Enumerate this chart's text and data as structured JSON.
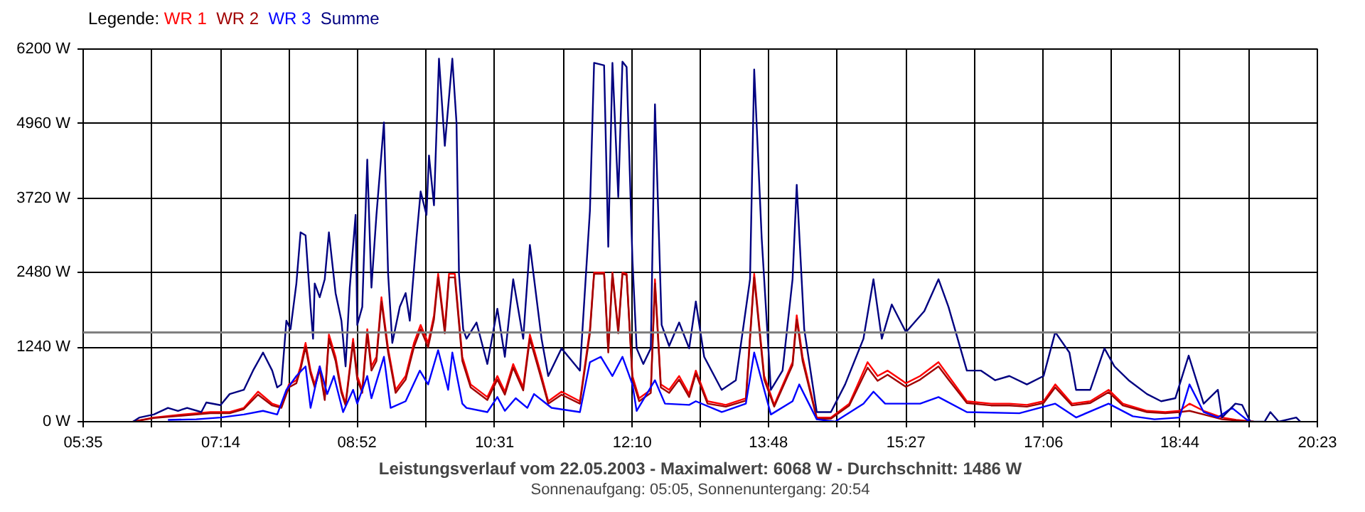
{
  "chart_data": {
    "type": "line",
    "title": "Leistungsverlauf vom 22.05.2003 - Maximalwert: 6068 W - Durchschnitt: 1486 W",
    "subtitle": "Sonnenaufgang: 05:05, Sonnenuntergang: 20:54",
    "legend_title": "Legende:",
    "legend": "top left",
    "grid": true,
    "line_style": "solid",
    "xlim": [
      5.5833,
      20.3833
    ],
    "xticks": [
      {
        "value": 5.5833,
        "label": "05:35"
      },
      {
        "value": 6.4083,
        "label": null
      },
      {
        "value": 7.2333,
        "label": "07:14"
      },
      {
        "value": 8.05,
        "label": null
      },
      {
        "value": 8.8667,
        "label": "08:52"
      },
      {
        "value": 9.6917,
        "label": null
      },
      {
        "value": 10.5167,
        "label": "10:31"
      },
      {
        "value": 11.3417,
        "label": null
      },
      {
        "value": 12.1667,
        "label": "12:10"
      },
      {
        "value": 12.9833,
        "label": null
      },
      {
        "value": 13.8,
        "label": "13:48"
      },
      {
        "value": 14.625,
        "label": null
      },
      {
        "value": 15.45,
        "label": "15:27"
      },
      {
        "value": 16.275,
        "label": null
      },
      {
        "value": 17.1,
        "label": "17:06"
      },
      {
        "value": 17.9167,
        "label": null
      },
      {
        "value": 18.7333,
        "label": "18:44"
      },
      {
        "value": 19.5583,
        "label": null
      },
      {
        "value": 20.3833,
        "label": "20:23"
      }
    ],
    "ylim": [
      0,
      6200
    ],
    "yticks": [
      {
        "value": 0,
        "label": "0 W"
      },
      {
        "value": 1240,
        "label": "1240 W"
      },
      {
        "value": 2480,
        "label": "2480 W"
      },
      {
        "value": 3720,
        "label": "3720 W"
      },
      {
        "value": 4960,
        "label": "4960 W"
      },
      {
        "value": 6200,
        "label": "6200 W"
      }
    ],
    "ref_lines": [
      {
        "axis": "y",
        "value": 1486,
        "color": "#808080"
      }
    ],
    "series": [
      {
        "name": "WR 1",
        "color": "#ff0000",
        "x": [
          6.18,
          6.43,
          6.77,
          7.11,
          7.34,
          7.51,
          7.68,
          7.85,
          7.96,
          8.05,
          8.14,
          8.19,
          8.25,
          8.31,
          8.36,
          8.42,
          8.48,
          8.53,
          8.61,
          8.68,
          8.73,
          8.82,
          8.87,
          8.93,
          8.99,
          9.04,
          9.1,
          9.16,
          9.24,
          9.33,
          9.45,
          9.55,
          9.63,
          9.72,
          9.79,
          9.84,
          9.92,
          9.97,
          10.04,
          10.13,
          10.23,
          10.43,
          10.55,
          10.64,
          10.74,
          10.86,
          10.94,
          11.08,
          11.16,
          11.32,
          11.54,
          11.66,
          11.71,
          11.83,
          11.88,
          11.93,
          12.0,
          12.05,
          12.1,
          12.17,
          12.25,
          12.39,
          12.44,
          12.51,
          12.61,
          12.73,
          12.85,
          12.93,
          13.07,
          13.29,
          13.53,
          13.63,
          13.75,
          13.87,
          14.09,
          14.14,
          14.21,
          14.38,
          14.55,
          14.77,
          14.99,
          15.11,
          15.23,
          15.45,
          15.62,
          15.84,
          15.96,
          16.18,
          16.47,
          16.69,
          16.9,
          17.1,
          17.24,
          17.44,
          17.66,
          17.88,
          18.05,
          18.34,
          18.56,
          18.73,
          18.85,
          19.02,
          19.24,
          19.41,
          19.62
        ],
        "values": [
          0,
          70,
          120,
          160,
          160,
          230,
          500,
          300,
          250,
          620,
          690,
          920,
          1310,
          850,
          620,
          920,
          390,
          1450,
          1080,
          530,
          300,
          1380,
          760,
          530,
          1540,
          920,
          1080,
          2070,
          1220,
          530,
          760,
          1310,
          1610,
          1310,
          1770,
          2460,
          1540,
          2460,
          2460,
          1080,
          620,
          410,
          760,
          500,
          960,
          570,
          1450,
          760,
          340,
          500,
          340,
          1540,
          2480,
          2480,
          1220,
          2480,
          1540,
          2480,
          2460,
          760,
          390,
          530,
          2370,
          620,
          530,
          760,
          460,
          850,
          340,
          280,
          390,
          2460,
          760,
          280,
          990,
          1770,
          1080,
          70,
          70,
          300,
          990,
          760,
          850,
          640,
          760,
          990,
          760,
          340,
          300,
          300,
          280,
          340,
          620,
          300,
          340,
          530,
          300,
          180,
          160,
          180,
          300,
          180,
          70,
          30,
          0
        ]
      },
      {
        "name": "WR 2",
        "color": "#a00000",
        "x": [
          6.18,
          6.43,
          6.77,
          7.11,
          7.34,
          7.51,
          7.68,
          7.85,
          7.96,
          8.05,
          8.14,
          8.19,
          8.25,
          8.31,
          8.36,
          8.42,
          8.48,
          8.53,
          8.61,
          8.68,
          8.73,
          8.82,
          8.87,
          8.93,
          8.99,
          9.04,
          9.1,
          9.16,
          9.24,
          9.33,
          9.45,
          9.55,
          9.63,
          9.72,
          9.79,
          9.84,
          9.92,
          9.97,
          10.04,
          10.13,
          10.23,
          10.43,
          10.55,
          10.64,
          10.74,
          10.86,
          10.94,
          11.08,
          11.16,
          11.32,
          11.54,
          11.66,
          11.71,
          11.83,
          11.88,
          11.93,
          12.0,
          12.05,
          12.1,
          12.17,
          12.25,
          12.39,
          12.44,
          12.51,
          12.61,
          12.73,
          12.85,
          12.93,
          13.07,
          13.29,
          13.53,
          13.63,
          13.75,
          13.87,
          14.09,
          14.14,
          14.21,
          14.38,
          14.55,
          14.77,
          14.99,
          15.11,
          15.23,
          15.45,
          15.62,
          15.84,
          15.96,
          16.18,
          16.47,
          16.69,
          16.9,
          17.1,
          17.24,
          17.44,
          17.66,
          17.88,
          18.05,
          18.34,
          18.56,
          18.73,
          18.85,
          19.02,
          19.24,
          19.41,
          19.62
        ],
        "values": [
          0,
          60,
          100,
          140,
          140,
          210,
          450,
          270,
          230,
          570,
          640,
          870,
          1240,
          800,
          570,
          870,
          360,
          1380,
          1010,
          480,
          270,
          1310,
          700,
          480,
          1470,
          850,
          1010,
          2000,
          1150,
          480,
          700,
          1240,
          1540,
          1240,
          1700,
          2400,
          1470,
          2400,
          2400,
          1010,
          570,
          360,
          700,
          450,
          900,
          520,
          1380,
          700,
          300,
          450,
          300,
          1470,
          2460,
          2460,
          1150,
          2460,
          1470,
          2460,
          2440,
          700,
          340,
          480,
          2300,
          570,
          480,
          700,
          410,
          800,
          300,
          250,
          350,
          2400,
          700,
          250,
          940,
          1700,
          1010,
          50,
          50,
          270,
          900,
          680,
          780,
          580,
          700,
          920,
          700,
          310,
          270,
          270,
          250,
          310,
          570,
          270,
          310,
          490,
          270,
          160,
          140,
          160,
          180,
          120,
          40,
          20,
          0
        ]
      },
      {
        "name": "WR 3",
        "color": "#0000ff",
        "x": [
          6.6,
          6.94,
          7.23,
          7.51,
          7.74,
          7.91,
          8.02,
          8.14,
          8.25,
          8.31,
          8.42,
          8.51,
          8.59,
          8.7,
          8.82,
          8.87,
          8.99,
          9.04,
          9.19,
          9.27,
          9.45,
          9.62,
          9.72,
          9.84,
          9.96,
          10.01,
          10.13,
          10.18,
          10.43,
          10.55,
          10.64,
          10.77,
          10.91,
          10.99,
          11.2,
          11.54,
          11.66,
          11.79,
          11.93,
          12.05,
          12.17,
          12.22,
          12.44,
          12.56,
          12.85,
          12.93,
          13.24,
          13.53,
          13.63,
          13.83,
          14.09,
          14.17,
          14.38,
          14.6,
          14.94,
          15.06,
          15.2,
          15.62,
          15.84,
          16.18,
          16.81,
          17.24,
          17.49,
          17.88,
          18.17,
          18.43,
          18.73,
          18.85,
          19.02,
          19.19,
          19.36,
          19.53,
          19.58
        ],
        "values": [
          30,
          40,
          70,
          120,
          180,
          120,
          530,
          760,
          920,
          230,
          920,
          460,
          760,
          160,
          530,
          300,
          760,
          390,
          1080,
          230,
          340,
          850,
          620,
          1190,
          530,
          1150,
          300,
          230,
          160,
          410,
          180,
          390,
          230,
          460,
          230,
          160,
          990,
          1080,
          760,
          1080,
          620,
          180,
          690,
          300,
          280,
          340,
          160,
          300,
          1150,
          120,
          340,
          620,
          40,
          0,
          300,
          500,
          300,
          300,
          410,
          160,
          140,
          300,
          70,
          300,
          90,
          40,
          70,
          620,
          160,
          70,
          230,
          40,
          0
        ]
      },
      {
        "name": "Summe",
        "color": "#000080",
        "x": [
          6.18,
          6.26,
          6.43,
          6.6,
          6.72,
          6.83,
          7.0,
          7.06,
          7.23,
          7.34,
          7.51,
          7.62,
          7.74,
          7.85,
          7.91,
          7.96,
          8.02,
          8.07,
          8.14,
          8.19,
          8.25,
          8.31,
          8.34,
          8.36,
          8.42,
          8.48,
          8.53,
          8.61,
          8.68,
          8.73,
          8.78,
          8.85,
          8.87,
          8.93,
          8.99,
          9.04,
          9.1,
          9.19,
          9.24,
          9.29,
          9.38,
          9.45,
          9.5,
          9.58,
          9.63,
          9.7,
          9.73,
          9.79,
          9.85,
          9.92,
          10.01,
          10.06,
          10.09,
          10.14,
          10.18,
          10.3,
          10.43,
          10.55,
          10.64,
          10.74,
          10.86,
          10.94,
          11.08,
          11.16,
          11.32,
          11.54,
          11.66,
          11.71,
          11.83,
          11.88,
          11.93,
          12.0,
          12.05,
          12.1,
          12.17,
          12.22,
          12.3,
          12.39,
          12.44,
          12.52,
          12.61,
          12.73,
          12.85,
          12.93,
          13.03,
          13.24,
          13.41,
          13.58,
          13.63,
          13.72,
          13.83,
          13.97,
          14.09,
          14.14,
          14.23,
          14.38,
          14.55,
          14.72,
          14.94,
          15.06,
          15.16,
          15.28,
          15.45,
          15.67,
          15.84,
          15.96,
          16.18,
          16.35,
          16.52,
          16.69,
          16.9,
          17.1,
          17.24,
          17.41,
          17.49,
          17.66,
          17.83,
          17.95,
          18.12,
          18.34,
          18.51,
          18.68,
          18.84,
          19.02,
          19.19,
          19.24,
          19.4,
          19.48,
          19.58,
          19.75,
          19.82,
          19.92,
          20.13,
          20.18
        ],
        "values": [
          0,
          70,
          120,
          230,
          180,
          230,
          160,
          320,
          275,
          460,
          530,
          850,
          1150,
          850,
          570,
          620,
          1680,
          1540,
          2300,
          3150,
          3100,
          1910,
          1380,
          2300,
          2070,
          2370,
          3150,
          2140,
          1680,
          920,
          2230,
          3440,
          1610,
          1910,
          4360,
          2230,
          3440,
          4980,
          2460,
          1310,
          1910,
          2140,
          1680,
          3050,
          3830,
          3440,
          4430,
          3600,
          6040,
          4590,
          6040,
          4980,
          2460,
          1540,
          1380,
          1650,
          960,
          1880,
          1080,
          2370,
          1380,
          2940,
          1380,
          760,
          1220,
          850,
          3510,
          5970,
          5930,
          2910,
          5970,
          3740,
          5990,
          5900,
          2690,
          1220,
          960,
          1220,
          5280,
          1610,
          1260,
          1650,
          1220,
          2000,
          1080,
          530,
          690,
          2370,
          5860,
          3050,
          530,
          850,
          2370,
          3940,
          1540,
          160,
          160,
          620,
          1380,
          2370,
          1380,
          1950,
          1490,
          1840,
          2370,
          1910,
          850,
          850,
          690,
          760,
          620,
          760,
          1490,
          1150,
          530,
          530,
          1220,
          920,
          690,
          460,
          340,
          390,
          1100,
          300,
          530,
          70,
          300,
          280,
          0,
          0,
          160,
          0,
          70,
          0
        ]
      }
    ]
  }
}
